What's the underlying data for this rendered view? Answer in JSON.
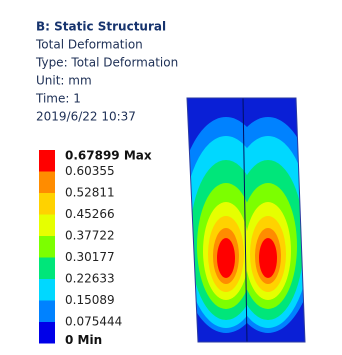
{
  "header": {
    "title": "B: Static Structural",
    "lines": [
      "Total Deformation",
      "Type: Total Deformation",
      "Unit: mm",
      "Time: 1",
      "2019/6/22 10:37"
    ]
  },
  "legend": {
    "labels": [
      "0.67899 Max",
      "0.60355",
      "0.52811",
      "0.45266",
      "0.37722",
      "0.30177",
      "0.22633",
      "0.15089",
      "0.075444",
      "0 Min"
    ]
  }
}
